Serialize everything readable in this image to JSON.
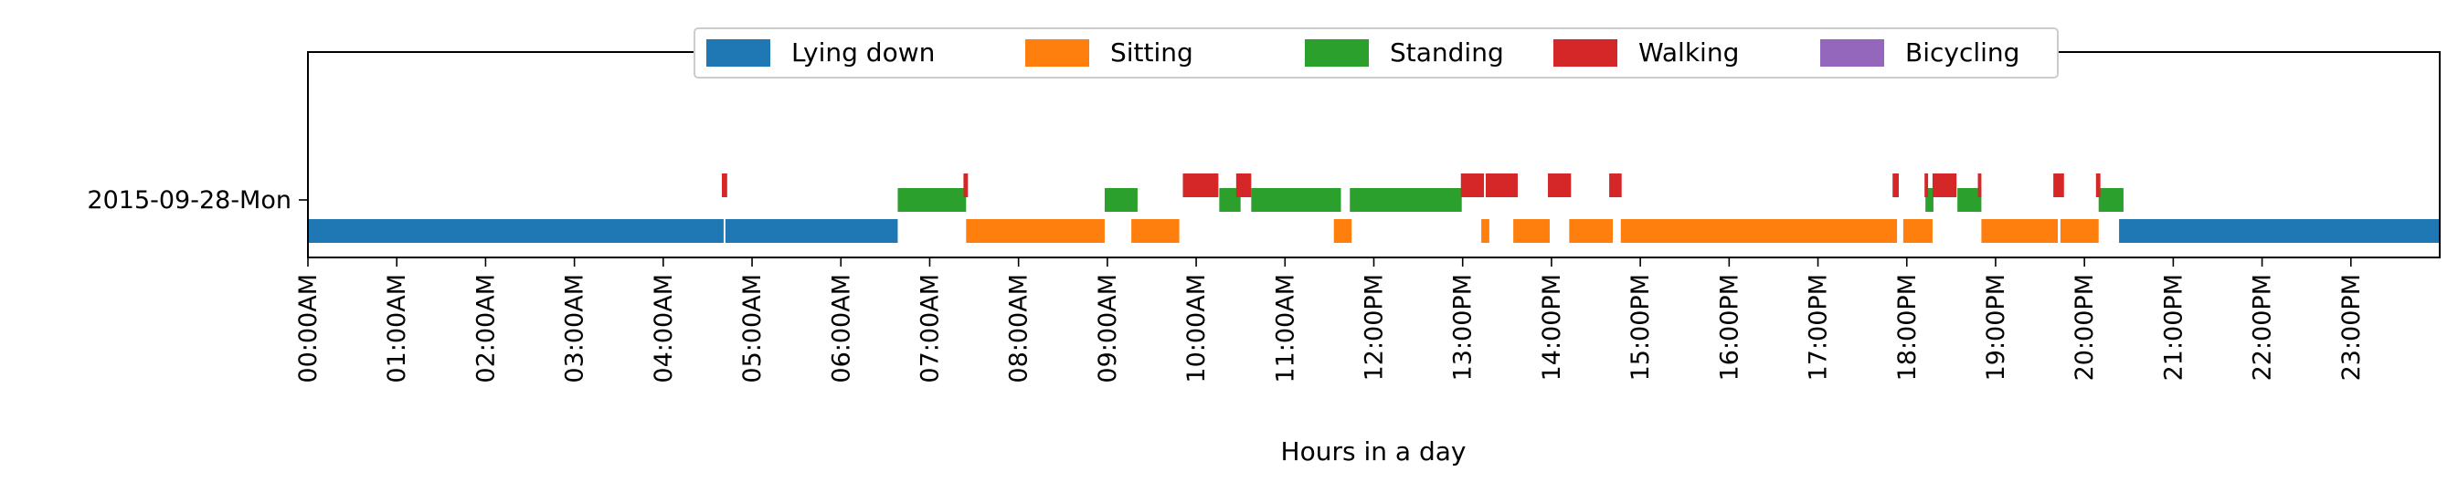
{
  "chart_data": {
    "type": "bar",
    "orientation": "horizontal-timeline",
    "title": "",
    "xlabel": "Hours in a day",
    "ylabel": "",
    "xlim": [
      0,
      24
    ],
    "grid": false,
    "legend_position": "top-center",
    "y_category": "2015-09-28-Mon",
    "x_ticks": [
      "00:00AM",
      "01:00AM",
      "02:00AM",
      "03:00AM",
      "04:00AM",
      "05:00AM",
      "06:00AM",
      "07:00AM",
      "08:00AM",
      "09:00AM",
      "10:00AM",
      "11:00AM",
      "12:00PM",
      "13:00PM",
      "14:00PM",
      "15:00PM",
      "16:00PM",
      "17:00PM",
      "18:00PM",
      "19:00PM",
      "20:00PM",
      "21:00PM",
      "22:00PM",
      "23:00PM"
    ],
    "series": [
      {
        "name": "Lying down",
        "color": "#1f77b4",
        "level": "low",
        "intervals": [
          [
            0.0,
            4.68
          ],
          [
            4.7,
            6.64
          ],
          [
            20.39,
            24.0
          ]
        ]
      },
      {
        "name": "Sitting",
        "color": "#ff7f0e",
        "level": "low",
        "intervals": [
          [
            7.41,
            8.97
          ],
          [
            9.27,
            9.81
          ],
          [
            11.55,
            11.75
          ],
          [
            13.21,
            13.3
          ],
          [
            13.57,
            13.98
          ],
          [
            14.2,
            14.69
          ],
          [
            14.78,
            17.89
          ],
          [
            17.96,
            18.29
          ],
          [
            18.84,
            19.7
          ],
          [
            19.73,
            20.16
          ]
        ]
      },
      {
        "name": "Standing",
        "color": "#2ca02c",
        "level": "mid",
        "intervals": [
          [
            6.64,
            7.41
          ],
          [
            8.97,
            9.34
          ],
          [
            10.26,
            10.5
          ],
          [
            10.62,
            11.63
          ],
          [
            11.73,
            12.99
          ],
          [
            18.21,
            18.3
          ],
          [
            18.57,
            18.84
          ],
          [
            20.16,
            20.44
          ]
        ]
      },
      {
        "name": "Walking",
        "color": "#d62728",
        "level": "high",
        "intervals": [
          [
            4.66,
            4.72
          ],
          [
            7.38,
            7.43
          ],
          [
            9.85,
            10.25
          ],
          [
            10.45,
            10.62
          ],
          [
            12.98,
            13.24
          ],
          [
            13.26,
            13.62
          ],
          [
            13.96,
            14.22
          ],
          [
            14.65,
            14.79
          ],
          [
            17.84,
            17.91
          ],
          [
            18.2,
            18.24
          ],
          [
            18.29,
            18.56
          ],
          [
            18.8,
            18.84
          ],
          [
            19.65,
            19.77
          ],
          [
            20.13,
            20.18
          ]
        ]
      },
      {
        "name": "Bicycling",
        "color": "#9467bd",
        "level": "mid",
        "intervals": []
      }
    ]
  }
}
